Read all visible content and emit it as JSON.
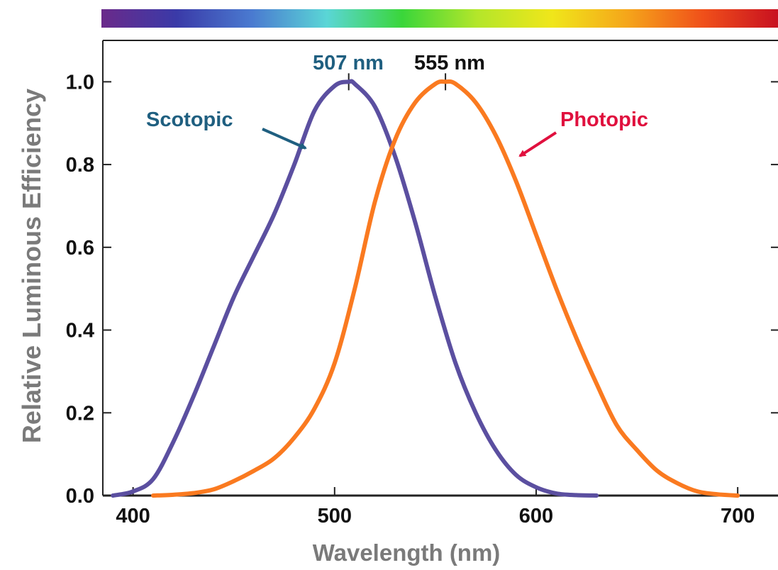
{
  "colors": {
    "scotopic": "#5b4fa0",
    "photopic": "#fa7a20",
    "scotopic_label": "#1f5f80",
    "photopic_label": "#e0103e",
    "peak_label_555": "#111111",
    "axis_title": "#7a7a7a",
    "spectrum": [
      "#6a2a8a",
      "#3a3aa8",
      "#4a7ad0",
      "#5ad6d6",
      "#3ad63a",
      "#b4e62a",
      "#f0e61a",
      "#f5a51a",
      "#f0501a",
      "#c81020"
    ]
  },
  "chart_data": {
    "type": "line",
    "xlabel": "Wavelength (nm)",
    "ylabel": "Relative Luminous Efficiency",
    "xlim": [
      385,
      720
    ],
    "ylim": [
      0,
      1.1
    ],
    "x_ticks": [
      400,
      500,
      600,
      700
    ],
    "y_ticks": [
      0.0,
      0.2,
      0.4,
      0.6,
      0.8,
      1.0
    ],
    "x_tick_labels": [
      "400",
      "500",
      "600",
      "700"
    ],
    "y_tick_labels": [
      "0.0",
      "0.2",
      "0.4",
      "0.6",
      "0.8",
      "1.0"
    ],
    "grid": false,
    "spectrum_bar": true,
    "series": [
      {
        "name": "Scotopic",
        "color": "#5b4fa0",
        "x": [
          390,
          400,
          410,
          420,
          430,
          440,
          450,
          460,
          470,
          480,
          490,
          500,
          507,
          510,
          520,
          530,
          540,
          550,
          560,
          570,
          580,
          590,
          600,
          610,
          620,
          630
        ],
        "y": [
          0.0,
          0.01,
          0.04,
          0.13,
          0.24,
          0.36,
          0.48,
          0.58,
          0.68,
          0.8,
          0.93,
          0.99,
          1.0,
          0.995,
          0.94,
          0.82,
          0.66,
          0.48,
          0.32,
          0.2,
          0.11,
          0.05,
          0.02,
          0.005,
          0.001,
          0.0
        ]
      },
      {
        "name": "Photopic",
        "color": "#fa7a20",
        "x": [
          410,
          420,
          430,
          440,
          450,
          460,
          470,
          480,
          490,
          500,
          510,
          520,
          530,
          540,
          550,
          555,
          560,
          570,
          580,
          590,
          600,
          610,
          620,
          630,
          640,
          650,
          660,
          670,
          680,
          690,
          700
        ],
        "y": [
          0.0,
          0.002,
          0.006,
          0.015,
          0.035,
          0.06,
          0.09,
          0.14,
          0.21,
          0.32,
          0.5,
          0.71,
          0.86,
          0.95,
          0.995,
          1.0,
          0.995,
          0.95,
          0.87,
          0.76,
          0.63,
          0.5,
          0.38,
          0.27,
          0.17,
          0.11,
          0.06,
          0.03,
          0.01,
          0.003,
          0.0
        ]
      }
    ],
    "annotations": {
      "scotopic_label": "Scotopic",
      "photopic_label": "Photopic",
      "peak_scotopic_label": "507 nm",
      "peak_photopic_label": "555 nm",
      "peak_scotopic_x": 507,
      "peak_photopic_x": 555
    }
  }
}
